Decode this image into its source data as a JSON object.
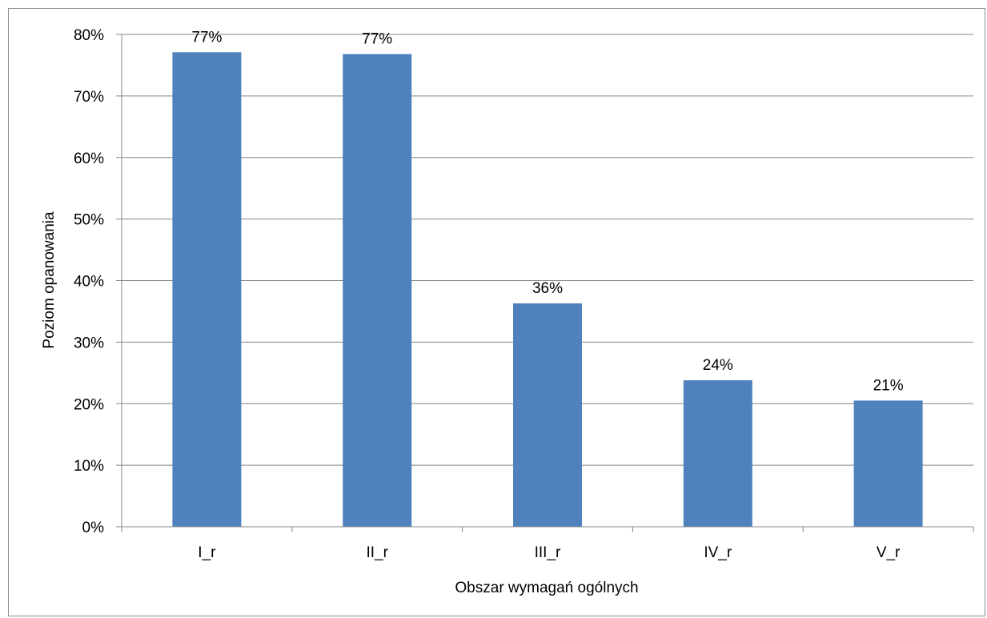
{
  "chart_data": {
    "type": "bar",
    "categories": [
      "I_r",
      "II_r",
      "III_r",
      "IV_r",
      "V_r"
    ],
    "values": [
      77.1,
      76.8,
      36.3,
      23.8,
      20.5
    ],
    "data_labels": [
      "77%",
      "77%",
      "36%",
      "24%",
      "21%"
    ],
    "title": "",
    "xlabel": "Obszar wymagań ogólnych",
    "ylabel": "Poziom opanowania",
    "ylim": [
      0,
      80
    ],
    "y_ticks": [
      0,
      10,
      20,
      30,
      40,
      50,
      60,
      70,
      80
    ],
    "y_tick_labels": [
      "0%",
      "10%",
      "20%",
      "30%",
      "40%",
      "50%",
      "60%",
      "70%",
      "80%"
    ],
    "grid": true,
    "legend": "none",
    "colors": {
      "bar": "#4f81bd",
      "grid": "#868686",
      "axis": "#868686"
    }
  }
}
